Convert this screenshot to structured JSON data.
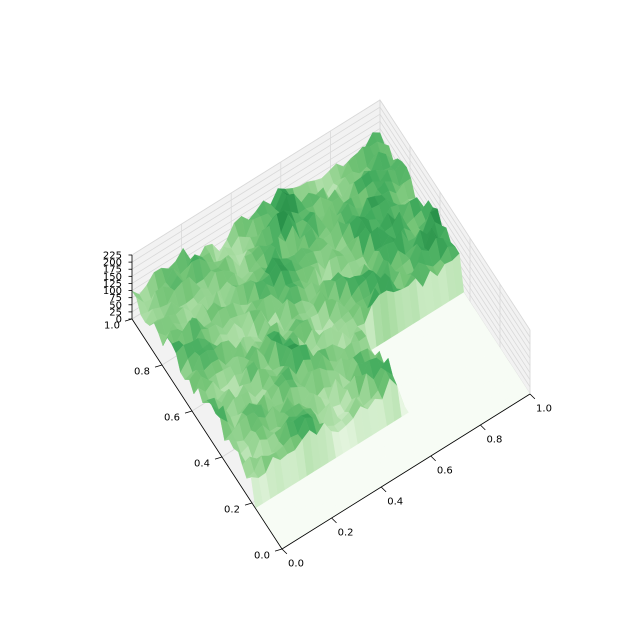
{
  "chart_data": {
    "type": "surface3d",
    "title": "",
    "xlabel": "",
    "ylabel": "",
    "zlabel": "",
    "xlim": [
      0,
      1
    ],
    "ylim": [
      0,
      1
    ],
    "zlim": [
      0,
      225
    ],
    "x_ticks": [
      "0.0",
      "0.2",
      "0.4",
      "0.6",
      "0.8",
      "1.0"
    ],
    "y_ticks": [
      "0.0",
      "0.2",
      "0.4",
      "0.6",
      "0.8",
      "1.0"
    ],
    "z_ticks": [
      "0",
      "25",
      "50",
      "75",
      "100",
      "125",
      "150",
      "175",
      "200",
      "225"
    ],
    "colormap": "Greens",
    "colors": {
      "low": "#f7fcf5",
      "mid": "#74c476",
      "high": "#00441b",
      "pane": "#f2f2f2",
      "grid": "#d9d9d9"
    },
    "grid": true,
    "surface": {
      "description_of_shape": "rough terrain",
      "elevated_region": {
        "x": [
          0.0,
          1.0
        ],
        "y": [
          0.18,
          1.0
        ]
      },
      "notch": {
        "x": [
          0.6,
          1.0
        ],
        "y": [
          0.0,
          0.45
        ]
      },
      "peak_value": 225,
      "floor_value": 0
    }
  }
}
